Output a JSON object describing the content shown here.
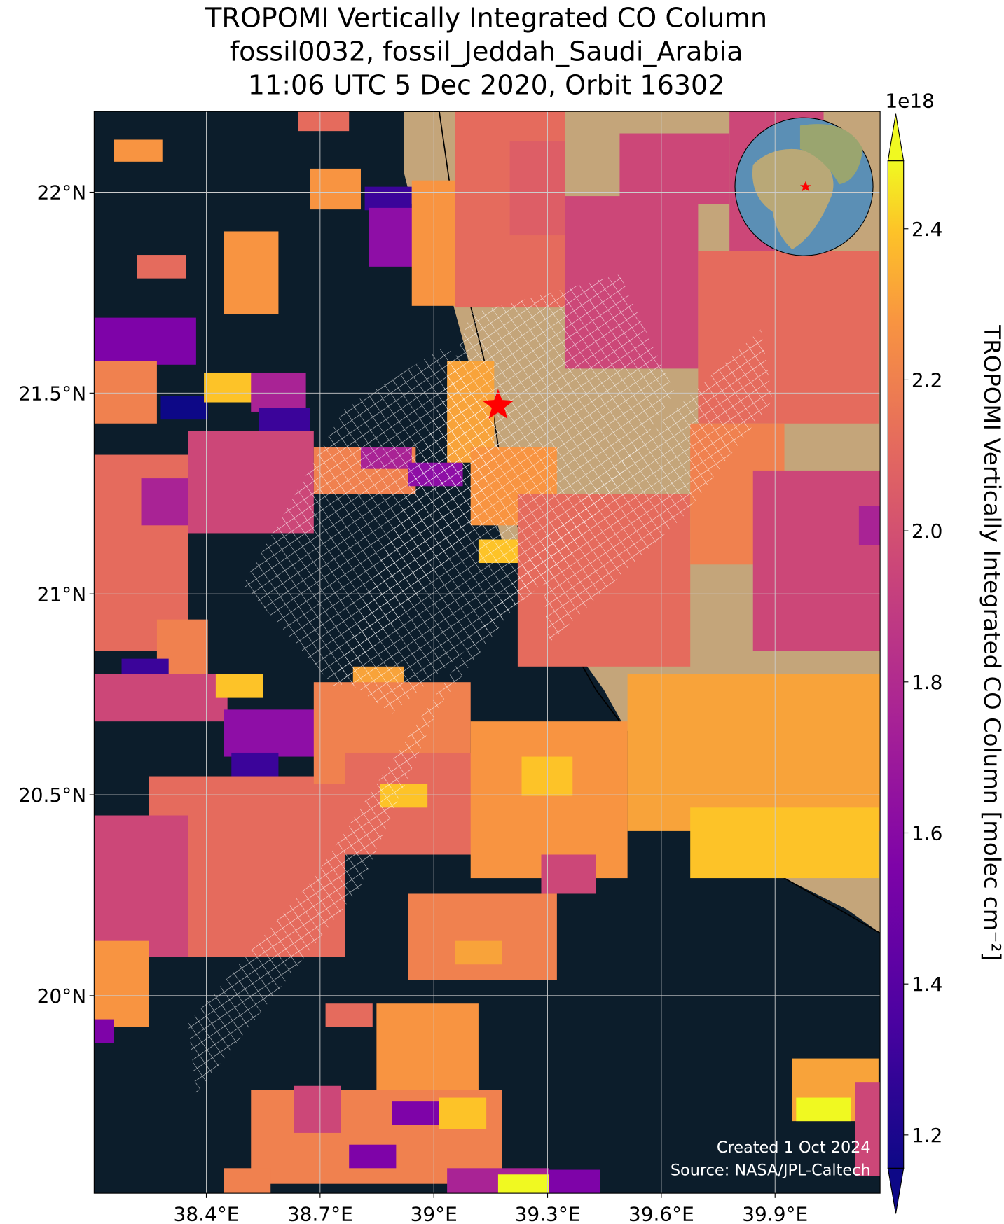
{
  "chart_data": {
    "type": "map",
    "title": [
      "TROPOMI Vertically Integrated CO Column",
      "fossil0032, fossil_Jeddah_Saudi_Arabia",
      "11:06 UTC 5 Dec 2020, Orbit 16302"
    ],
    "xlim": [
      38.104,
      40.177
    ],
    "ylim": [
      19.508,
      22.201
    ],
    "xticks": [
      {
        "value": 38.4,
        "label": "38.4°E"
      },
      {
        "value": 38.7,
        "label": "38.7°E"
      },
      {
        "value": 39,
        "label": "39°E"
      },
      {
        "value": 39.3,
        "label": "39.3°E"
      },
      {
        "value": 39.6,
        "label": "39.6°E"
      },
      {
        "value": 39.9,
        "label": "39.9°E"
      }
    ],
    "yticks": [
      {
        "value": 20,
        "label": "20°N"
      },
      {
        "value": 20.5,
        "label": "20.5°N"
      },
      {
        "value": 21,
        "label": "21°N"
      },
      {
        "value": 21.5,
        "label": "21.5°N"
      },
      {
        "value": 22,
        "label": "22°N"
      }
    ],
    "grid": true,
    "colorbar": {
      "label": "TROPOMI Vertically Integrated CO Column [molec cm⁻²]",
      "exponent": "1e18",
      "clim": [
        1.156,
        2.49
      ],
      "ticks": [
        {
          "value": 1.2,
          "label": "1.2"
        },
        {
          "value": 1.4,
          "label": "1.4"
        },
        {
          "value": 1.6,
          "label": "1.6"
        },
        {
          "value": 1.8,
          "label": "1.8"
        },
        {
          "value": 2,
          "label": "2.0"
        },
        {
          "value": 2.2,
          "label": "2.2"
        },
        {
          "value": 2.4,
          "label": "2.4"
        }
      ]
    },
    "footer": [
      "Created 1 Oct 2024",
      "Source: NASA/JPL-Caltech"
    ]
  }
}
